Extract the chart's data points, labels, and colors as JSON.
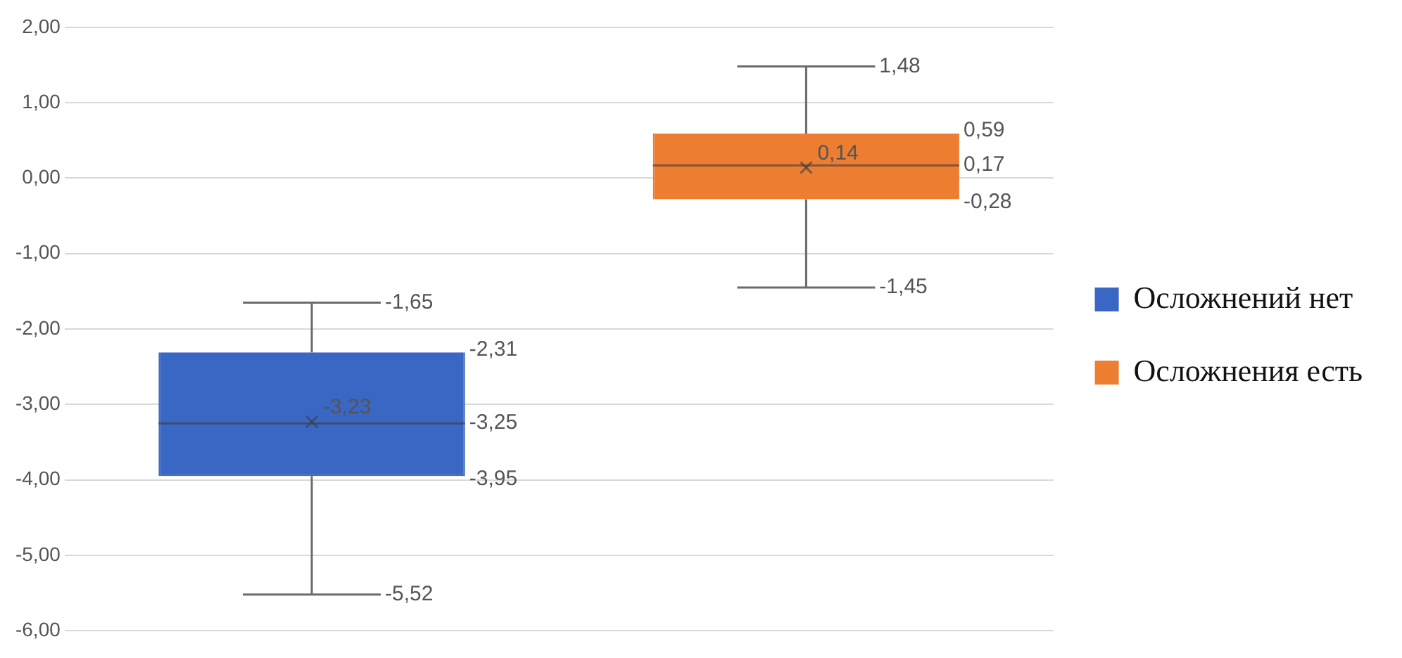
{
  "chart_data": {
    "type": "box",
    "categories": [
      null,
      null
    ],
    "series": [
      {
        "name": "Осложнений нет",
        "color": "#3a66c4",
        "boxes": [
          {
            "low": -5.52,
            "q1": -3.95,
            "median": -3.25,
            "q3": -2.31,
            "high": -1.65,
            "mean": -3.23
          },
          null
        ],
        "value_labels": [
          [
            "-1,65",
            "-2,31",
            "-3,25",
            "-3,95",
            "-5,52",
            "-3,23"
          ],
          null
        ]
      },
      {
        "name": "Осложнения есть",
        "color": "#ed7d31",
        "boxes": [
          null,
          {
            "low": -1.45,
            "q1": -0.28,
            "median": 0.17,
            "q3": 0.59,
            "high": 1.48,
            "mean": 0.14
          }
        ],
        "value_labels": [
          null,
          [
            "1,48",
            "0,59",
            "0,17",
            "-0,28",
            "-1,45",
            "0,14"
          ]
        ]
      }
    ],
    "ylim": [
      -6,
      2
    ],
    "yticks": [
      {
        "value": 2,
        "label": "2,00"
      },
      {
        "value": 1,
        "label": "1,00"
      },
      {
        "value": 0,
        "label": "0,00"
      },
      {
        "value": -1,
        "label": "-1,00"
      },
      {
        "value": -2,
        "label": "-2,00"
      },
      {
        "value": -3,
        "label": "-3,00"
      },
      {
        "value": -4,
        "label": "-4,00"
      },
      {
        "value": -5,
        "label": "-5,00"
      },
      {
        "value": -6,
        "label": "-6,00"
      }
    ],
    "grid": "y",
    "legend": "right"
  }
}
